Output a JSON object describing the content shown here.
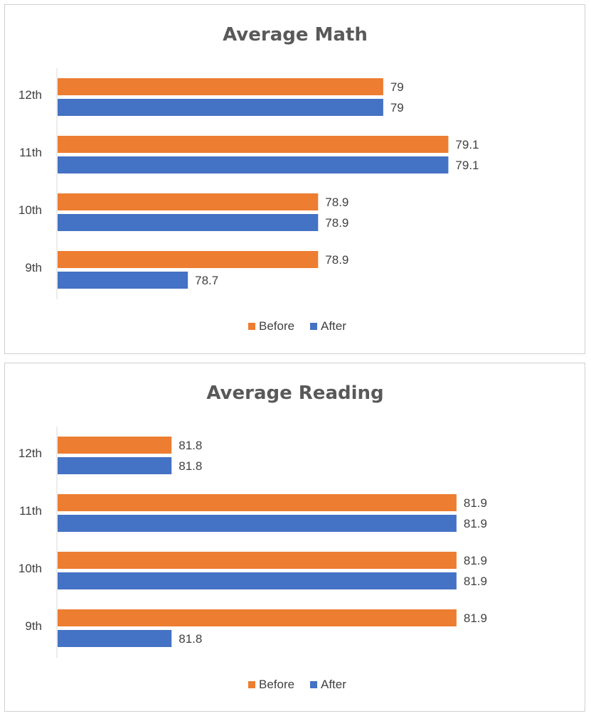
{
  "colors": {
    "before": "#ed7d31",
    "after": "#4472c4",
    "axis": "#d9d9d9",
    "text": "#404040",
    "title": "#595959"
  },
  "chart_data": [
    {
      "type": "bar",
      "orientation": "horizontal",
      "title": "Average Math",
      "categories": [
        "9th",
        "10th",
        "11th",
        "12th"
      ],
      "series": [
        {
          "name": "Before",
          "values": [
            78.9,
            78.9,
            79.1,
            79
          ]
        },
        {
          "name": "After",
          "values": [
            78.7,
            78.9,
            79.1,
            79
          ]
        }
      ],
      "data_labels": {
        "Before": [
          "78.9",
          "78.9",
          "79.1",
          "79"
        ],
        "After": [
          "78.7",
          "78.9",
          "79.1",
          "79"
        ]
      },
      "xlim": [
        78.5,
        79.2
      ],
      "grid": false,
      "legend": "bottom"
    },
    {
      "type": "bar",
      "orientation": "horizontal",
      "title": "Average Reading",
      "categories": [
        "9th",
        "10th",
        "11th",
        "12th"
      ],
      "series": [
        {
          "name": "Before",
          "values": [
            81.9,
            81.9,
            81.9,
            81.8
          ]
        },
        {
          "name": "After",
          "values": [
            81.8,
            81.9,
            81.9,
            81.8
          ]
        }
      ],
      "data_labels": {
        "Before": [
          "81.9",
          "81.9",
          "81.9",
          "81.8"
        ],
        "After": [
          "81.8",
          "81.9",
          "81.9",
          "81.8"
        ]
      },
      "xlim": [
        81.76,
        81.92
      ],
      "grid": false,
      "legend": "bottom"
    }
  ]
}
